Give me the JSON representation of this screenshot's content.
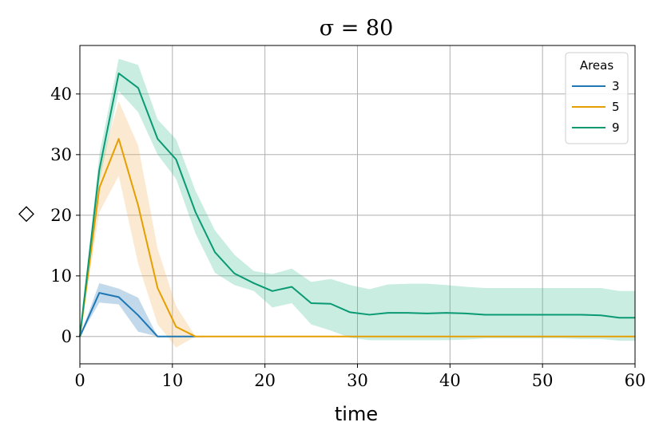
{
  "chart_data": {
    "type": "line",
    "title": "σ = 80",
    "xlabel": "time",
    "ylabel": "◇",
    "xlim": [
      0,
      60
    ],
    "ylim": [
      -4.5,
      48
    ],
    "xticks": [
      0,
      10,
      20,
      30,
      40,
      50,
      60
    ],
    "yticks": [
      0,
      10,
      20,
      30,
      40
    ],
    "grid": true,
    "legend": {
      "title": "Areas",
      "position": "top-right"
    },
    "series": [
      {
        "name": "3",
        "color": "#1f77b4",
        "band_color": "#1f77b4",
        "x": [
          0,
          2.1,
          4.2,
          6.3,
          8.4,
          10.4,
          12.5
        ],
        "y": [
          0,
          7.2,
          6.5,
          3.5,
          0,
          0,
          0
        ],
        "lower": [
          0,
          5.6,
          5.3,
          0.8,
          0,
          0,
          0
        ],
        "upper": [
          0,
          8.8,
          7.9,
          6.4,
          0,
          0,
          0
        ]
      },
      {
        "name": "5",
        "color": "#e69f00",
        "band_color": "#f0b45a",
        "x": [
          0,
          2.1,
          4.2,
          6.3,
          8.4,
          10.4,
          12.5,
          15,
          20,
          30,
          40,
          50,
          60
        ],
        "y": [
          0,
          24.5,
          32.6,
          21.6,
          8,
          1.6,
          0,
          0,
          0,
          0,
          0,
          0,
          0
        ],
        "lower": [
          0,
          20.5,
          26.5,
          12,
          2,
          -1.8,
          0,
          0,
          0,
          0,
          0,
          0,
          0
        ],
        "upper": [
          0,
          27.5,
          38.8,
          31.5,
          14.5,
          5,
          0,
          0,
          0,
          0,
          0,
          0,
          0
        ]
      },
      {
        "name": "9",
        "color": "#0a9a73",
        "band_color": "#3cbf91",
        "x": [
          0,
          2.1,
          4.2,
          6.3,
          8.4,
          10.4,
          12.5,
          14.6,
          16.7,
          18.8,
          20.8,
          22.9,
          25,
          27.1,
          29.2,
          31.3,
          33.3,
          35.4,
          37.5,
          39.6,
          41.7,
          43.8,
          45.8,
          47.9,
          50,
          52.1,
          54.2,
          56.3,
          58.3,
          60
        ],
        "y": [
          0,
          27.5,
          43.4,
          41,
          32.6,
          29.2,
          20.5,
          13.9,
          10.4,
          8.8,
          7.5,
          8.2,
          5.5,
          5.4,
          4,
          3.6,
          3.9,
          3.9,
          3.8,
          3.9,
          3.8,
          3.6,
          3.6,
          3.6,
          3.6,
          3.6,
          3.6,
          3.5,
          3.1,
          3.1
        ],
        "lower": [
          0,
          25.5,
          40.5,
          37,
          30,
          26,
          17,
          10.5,
          8.5,
          7.5,
          4.8,
          5.5,
          2,
          1,
          -0.2,
          -0.6,
          -0.6,
          -0.6,
          -0.6,
          -0.6,
          -0.5,
          -0.3,
          -0.3,
          -0.3,
          -0.3,
          -0.3,
          -0.4,
          -0.4,
          -0.7,
          -0.7
        ],
        "upper": [
          0,
          30,
          45.8,
          44.8,
          35.8,
          32.5,
          24,
          17.5,
          13.5,
          10.8,
          10.3,
          11.2,
          9,
          9.5,
          8.5,
          7.8,
          8.6,
          8.7,
          8.7,
          8.5,
          8.2,
          8,
          8,
          8,
          8,
          8,
          8,
          8,
          7.5,
          7.5
        ]
      }
    ]
  }
}
